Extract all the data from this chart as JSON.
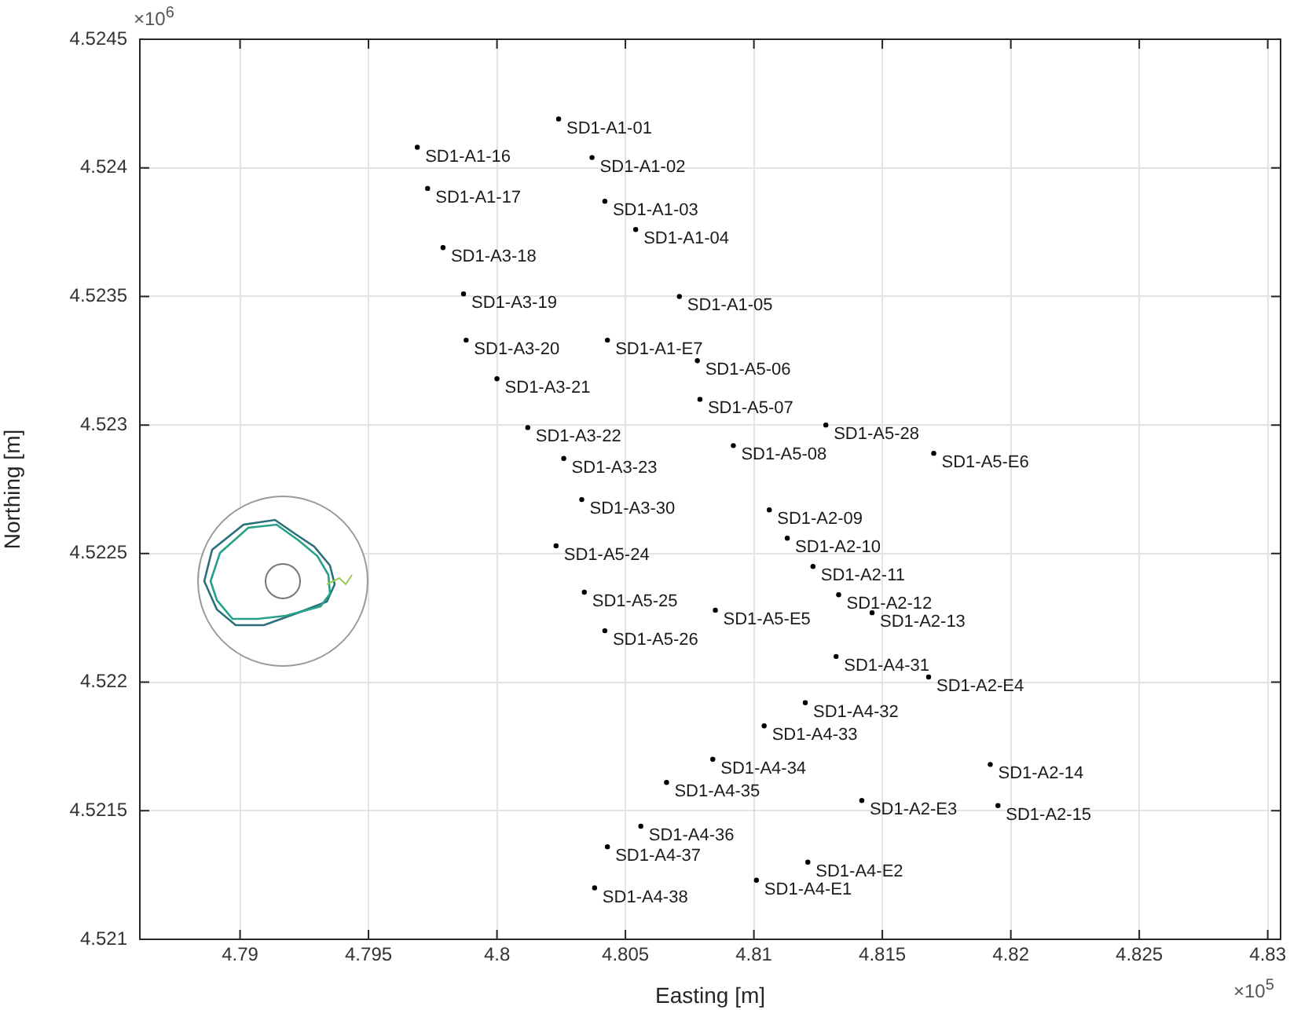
{
  "chart_data": {
    "type": "scatter",
    "xlabel": "Easting [m]",
    "ylabel": "Northing [m]",
    "x": [
      4.8024,
      4.7969,
      4.8037,
      4.7973,
      4.8042,
      4.8054,
      4.7979,
      4.7987,
      4.8071,
      4.7988,
      4.8043,
      4.8078,
      4.8,
      4.8079,
      4.8012,
      4.8128,
      4.8026,
      4.8092,
      4.817,
      4.8033,
      4.8106,
      4.8023,
      4.8113,
      4.8123,
      4.8034,
      4.8133,
      4.8085,
      4.8146,
      4.8042,
      4.8132,
      4.8168,
      4.812,
      4.8104,
      4.8084,
      4.8192,
      4.8066,
      4.8142,
      4.8195,
      4.8056,
      4.8043,
      4.8121,
      4.8101,
      4.8038
    ],
    "series": [
      {
        "color": "#000000",
        "values": [
          4.52419,
          4.52408,
          4.52404,
          4.52392,
          4.52387,
          4.52376,
          4.52369,
          4.52351,
          4.5235,
          4.52333,
          4.52333,
          4.52325,
          4.52318,
          4.5231,
          4.52299,
          4.523,
          4.52287,
          4.52292,
          4.52289,
          4.52271,
          4.52267,
          4.52253,
          4.52256,
          4.52245,
          4.52235,
          4.52234,
          4.52228,
          4.52227,
          4.5222,
          4.5221,
          4.52202,
          4.52192,
          4.52183,
          4.5217,
          4.52168,
          4.52161,
          4.52154,
          4.52152,
          4.52144,
          4.52136,
          4.5213,
          4.52123,
          4.5212
        ]
      }
    ],
    "xlim": [
      4.7861,
      4.8305
    ],
    "xticks": [
      4.79,
      4.795,
      4.8,
      4.805,
      4.81,
      4.815,
      4.82,
      4.825,
      4.83
    ],
    "ylim": [
      4.521,
      4.5245
    ],
    "yticks": [
      4.521,
      4.5215,
      4.522,
      4.5225,
      4.523,
      4.5235,
      4.524,
      4.5245
    ],
    "grid": true,
    "marker": "circle",
    "annotations": [
      "×10$^{6}$",
      "×10$^{5}$",
      {
        "text": "SD1-A1-01",
        "x": 4.8024,
        "y": 4.52419
      },
      {
        "text": "SD1-A1-16",
        "x": 4.7969,
        "y": 4.52408
      },
      {
        "text": "SD1-A1-02",
        "x": 4.8037,
        "y": 4.52404
      },
      {
        "text": "SD1-A1-17",
        "x": 4.7973,
        "y": 4.52392
      },
      {
        "text": "SD1-A1-03",
        "x": 4.8042,
        "y": 4.52387
      },
      {
        "text": "SD1-A1-04",
        "x": 4.8054,
        "y": 4.52376
      },
      {
        "text": "SD1-A3-18",
        "x": 4.7979,
        "y": 4.52369
      },
      {
        "text": "SD1-A3-19",
        "x": 4.7987,
        "y": 4.52351
      },
      {
        "text": "SD1-A1-05",
        "x": 4.8071,
        "y": 4.5235
      },
      {
        "text": "SD1-A3-20",
        "x": 4.7988,
        "y": 4.52333
      },
      {
        "text": "SD1-A1-E7",
        "x": 4.8043,
        "y": 4.52333
      },
      {
        "text": "SD1-A5-06",
        "x": 4.8078,
        "y": 4.52325
      },
      {
        "text": "SD1-A3-21",
        "x": 4.8,
        "y": 4.52318
      },
      {
        "text": "SD1-A5-07",
        "x": 4.8079,
        "y": 4.5231
      },
      {
        "text": "SD1-A3-22",
        "x": 4.8012,
        "y": 4.52299
      },
      {
        "text": "SD1-A5-28",
        "x": 4.8128,
        "y": 4.523
      },
      {
        "text": "SD1-A3-23",
        "x": 4.8026,
        "y": 4.52287
      },
      {
        "text": "SD1-A5-08",
        "x": 4.8092,
        "y": 4.52292
      },
      {
        "text": "SD1-A5-E6",
        "x": 4.817,
        "y": 4.52289
      },
      {
        "text": "SD1-A3-30",
        "x": 4.8033,
        "y": 4.52271
      },
      {
        "text": "SD1-A2-09",
        "x": 4.8106,
        "y": 4.52267
      },
      {
        "text": "SD1-A5-24",
        "x": 4.8023,
        "y": 4.52253
      },
      {
        "text": "SD1-A2-10",
        "x": 4.8113,
        "y": 4.52256
      },
      {
        "text": "SD1-A2-11",
        "x": 4.8123,
        "y": 4.52245
      },
      {
        "text": "SD1-A5-25",
        "x": 4.8034,
        "y": 4.52235
      },
      {
        "text": "SD1-A2-12",
        "x": 4.8133,
        "y": 4.52234
      },
      {
        "text": "SD1-A5-E5",
        "x": 4.8085,
        "y": 4.52228
      },
      {
        "text": "SD1-A2-13",
        "x": 4.8146,
        "y": 4.52227
      },
      {
        "text": "SD1-A5-26",
        "x": 4.8042,
        "y": 4.5222
      },
      {
        "text": "SD1-A4-31",
        "x": 4.8132,
        "y": 4.5221
      },
      {
        "text": "SD1-A2-E4",
        "x": 4.8168,
        "y": 4.52202
      },
      {
        "text": "SD1-A4-32",
        "x": 4.812,
        "y": 4.52192
      },
      {
        "text": "SD1-A4-33",
        "x": 4.8104,
        "y": 4.52183
      },
      {
        "text": "SD1-A4-34",
        "x": 4.8084,
        "y": 4.5217
      },
      {
        "text": "SD1-A2-14",
        "x": 4.8192,
        "y": 4.52168
      },
      {
        "text": "SD1-A4-35",
        "x": 4.8066,
        "y": 4.52161
      },
      {
        "text": "SD1-A2-E3",
        "x": 4.8142,
        "y": 4.52154
      },
      {
        "text": "SD1-A2-15",
        "x": 4.8195,
        "y": 4.52152
      },
      {
        "text": "SD1-A4-36",
        "x": 4.8056,
        "y": 4.52144
      },
      {
        "text": "SD1-A4-37",
        "x": 4.8043,
        "y": 4.52136
      },
      {
        "text": "SD1-A4-E2",
        "x": 4.8121,
        "y": 4.5213
      },
      {
        "text": "SD1-A4-E1",
        "x": 4.8101,
        "y": 4.52123
      },
      {
        "text": "SD1-A4-38",
        "x": 4.8038,
        "y": 4.5212
      }
    ]
  }
}
